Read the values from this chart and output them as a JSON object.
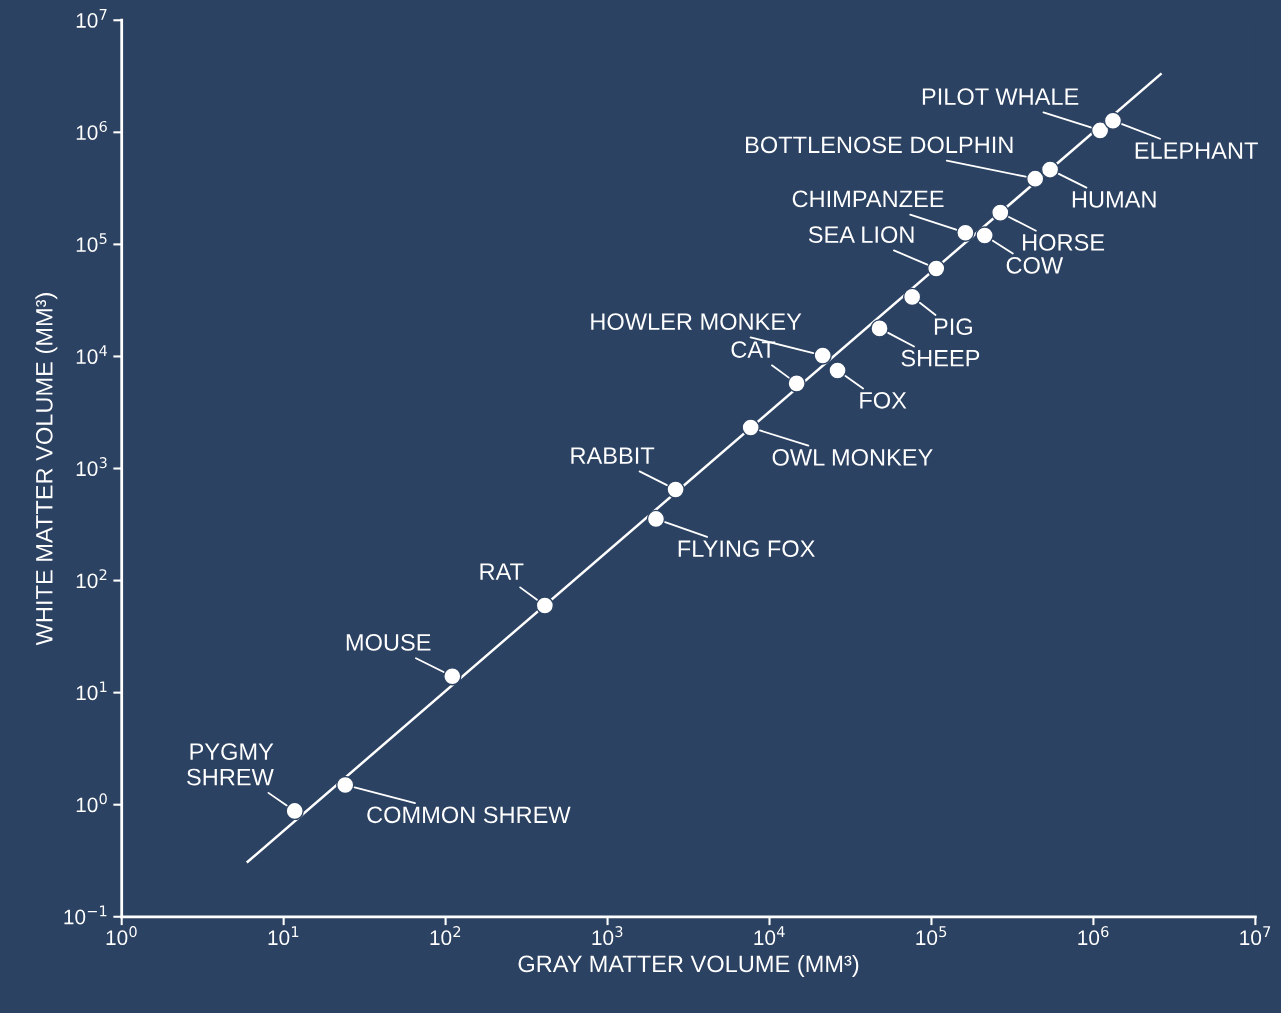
{
  "chart_data": {
    "type": "scatter",
    "xlabel": "GRAY MATTER VOLUME (MM³)",
    "ylabel": "WHITE MATTER VOLUME (MM³)",
    "log": "xy",
    "grid": false,
    "marker": "circle",
    "xlim": [
      1,
      10000000
    ],
    "ylim": [
      0.1,
      10000000
    ],
    "xticks": [
      {
        "value": 1,
        "label": "10$^{0}$"
      },
      {
        "value": 10,
        "label": "10$^{1}$"
      },
      {
        "value": 100,
        "label": "10$^{2}$"
      },
      {
        "value": 1000,
        "label": "10$^{3}$"
      },
      {
        "value": 10000,
        "label": "10$^{4}$"
      },
      {
        "value": 100000,
        "label": "10$^{5}$"
      },
      {
        "value": 1000000,
        "label": "10$^{6}$"
      },
      {
        "value": 10000000,
        "label": "10$^{7}$"
      }
    ],
    "yticks": [
      {
        "value": 0.1,
        "label": "10$^{−1}$"
      },
      {
        "value": 1,
        "label": "10$^{0}$"
      },
      {
        "value": 10,
        "label": "10$^{1}$"
      },
      {
        "value": 100,
        "label": "10$^{2}$"
      },
      {
        "value": 1000,
        "label": "10$^{3}$"
      },
      {
        "value": 10000,
        "label": "10$^{4}$"
      },
      {
        "value": 100000,
        "label": "10$^{5}$"
      },
      {
        "value": 1000000,
        "label": "10$^{6}$"
      },
      {
        "value": 10000000,
        "label": "10$^{7}$"
      }
    ],
    "series": [
      {
        "type": "line",
        "color": "#ffffff",
        "line_style": "solid",
        "marker": "none",
        "x": [
          6,
          2600000
        ],
        "values": [
          0.31,
          3300000
        ]
      },
      {
        "color": "#ffffff",
        "x": [
          11.7,
          24,
          110,
          410,
          1990,
          2630,
          7650,
          14700,
          21300,
          26300,
          47800,
          76000,
          107000,
          162000,
          213000,
          266000,
          437000,
          540000,
          1100000,
          1320000
        ],
        "values": [
          0.88,
          1.5,
          14,
          60,
          355,
          650,
          2320,
          5750,
          10200,
          7500,
          17800,
          34000,
          61000,
          127000,
          120000,
          192000,
          386000,
          465000,
          1040000,
          1270000
        ]
      }
    ],
    "annotations": [
      {
        "text": "PYGMY\nSHREW",
        "x": 11.7,
        "y": 0.88
      },
      {
        "text": "COMMON SHREW",
        "x": 24,
        "y": 1.5
      },
      {
        "text": "MOUSE",
        "x": 110,
        "y": 14
      },
      {
        "text": "RAT",
        "x": 410,
        "y": 60
      },
      {
        "text": "FLYING FOX",
        "x": 1990,
        "y": 355
      },
      {
        "text": "RABBIT",
        "x": 2630,
        "y": 650
      },
      {
        "text": "OWL MONKEY",
        "x": 7650,
        "y": 2320
      },
      {
        "text": "CAT",
        "x": 14700,
        "y": 5750
      },
      {
        "text": "HOWLER MONKEY",
        "x": 21300,
        "y": 10200
      },
      {
        "text": "FOX",
        "x": 26300,
        "y": 7500
      },
      {
        "text": "SHEEP",
        "x": 47800,
        "y": 17800
      },
      {
        "text": "PIG",
        "x": 76000,
        "y": 34000
      },
      {
        "text": "SEA LION",
        "x": 107000,
        "y": 61000
      },
      {
        "text": "CHIMPANZEE",
        "x": 162000,
        "y": 127000
      },
      {
        "text": "COW",
        "x": 213000,
        "y": 120000
      },
      {
        "text": "HORSE",
        "x": 266000,
        "y": 192000
      },
      {
        "text": "BOTTLENOSE DOLPHIN",
        "x": 437000,
        "y": 386000
      },
      {
        "text": "HUMAN",
        "x": 540000,
        "y": 465000
      },
      {
        "text": "PILOT WHALE",
        "x": 1100000,
        "y": 1040000
      },
      {
        "text": "ELEPHANT",
        "x": 1320000,
        "y": 1270000
      }
    ]
  }
}
